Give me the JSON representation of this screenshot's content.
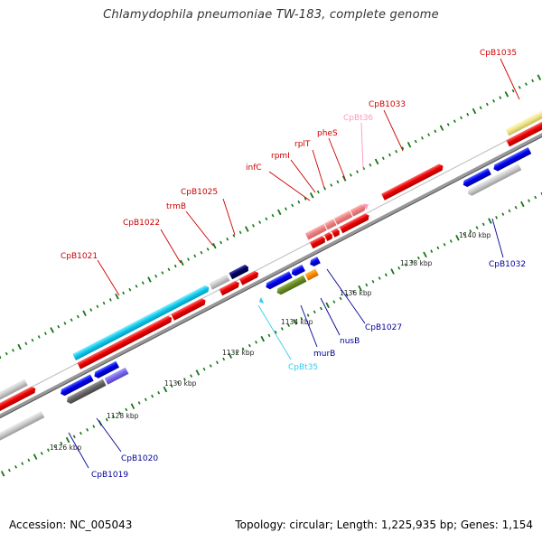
{
  "title": "Chlamydophila pneumoniae TW-183, complete genome",
  "footer": {
    "accession": "Accession: NC_005043",
    "summary": "Topology: circular; Length: 1,225,935 bp; Genes: 1,154"
  },
  "colors": {
    "label_forward": "#cc0000",
    "label_reverse": "#000099",
    "label_trna_fwd": "#ff99bb",
    "label_trna_rev": "#33ccee",
    "backbone": "#999999",
    "tick": "#117711"
  },
  "kbp_labels": [
    "1126 kbp",
    "1128 kbp",
    "1130 kbp",
    "1132 kbp",
    "1134 kbp",
    "1136 kbp",
    "1138 kbp",
    "1140 kbp"
  ],
  "forward_labels": [
    "CpB1021",
    "CpB1022",
    "trmB",
    "CpB1025",
    "infC",
    "rpmI",
    "rplT",
    "pheS",
    "CpBt36",
    "CpB1033",
    "CpB1035"
  ],
  "reverse_labels": [
    "CpB1019",
    "CpB1020",
    "CpBt35",
    "murB",
    "nusB",
    "CpB1027",
    "CpB1032"
  ]
}
